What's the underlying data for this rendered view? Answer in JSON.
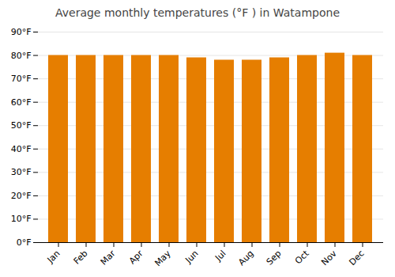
{
  "chart_data": {
    "type": "bar",
    "title": "Average monthly temperatures (°F ) in Watampone",
    "categories": [
      "Jan",
      "Feb",
      "Mar",
      "Apr",
      "May",
      "Jun",
      "Jul",
      "Aug",
      "Sep",
      "Oct",
      "Nov",
      "Dec"
    ],
    "values": [
      80,
      80,
      80,
      80,
      80,
      79,
      78,
      78,
      79,
      80,
      81,
      80
    ],
    "color": "#E67E00",
    "ylim": [
      0,
      90
    ],
    "yticks": [
      {
        "value": 0,
        "label": "0°F"
      },
      {
        "value": 10,
        "label": "10°F"
      },
      {
        "value": 20,
        "label": "20°F"
      },
      {
        "value": 30,
        "label": "30°F"
      },
      {
        "value": 40,
        "label": "40°F"
      },
      {
        "value": 50,
        "label": "50°F"
      },
      {
        "value": 60,
        "label": "60°F"
      },
      {
        "value": 70,
        "label": "70°F"
      },
      {
        "value": 80,
        "label": "80°F"
      },
      {
        "value": 90,
        "label": "90°F"
      }
    ],
    "grid": true
  }
}
